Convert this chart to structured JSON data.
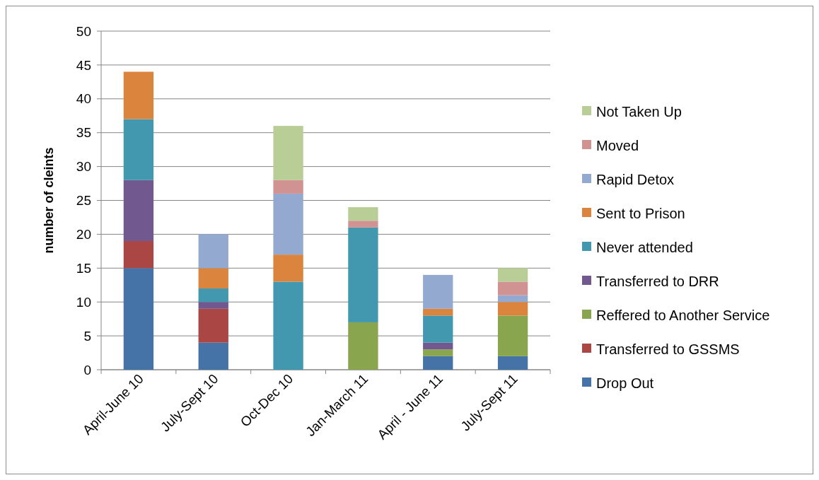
{
  "chart_data": {
    "type": "bar",
    "stacked": true,
    "ylabel": "number of cleints",
    "categories": [
      "April-June 10",
      "July-Sept 10",
      "Oct-Dec 10",
      "Jan-March 11",
      "April - June 11",
      "July-Sept 11"
    ],
    "ylim": [
      0,
      50
    ],
    "yticks": [
      0,
      5,
      10,
      15,
      20,
      25,
      30,
      35,
      40,
      45,
      50
    ],
    "grid": "y",
    "legend": "right",
    "series": [
      {
        "name": "Drop Out",
        "color": "#4572a7",
        "values": [
          15,
          4,
          0,
          0,
          2,
          2
        ]
      },
      {
        "name": "Transferred to GSSMS",
        "color": "#aa4643",
        "values": [
          4,
          5,
          0,
          0,
          0,
          0
        ]
      },
      {
        "name": "Reffered to Another Service",
        "color": "#89a54e",
        "values": [
          0,
          0,
          0,
          7,
          1,
          6
        ]
      },
      {
        "name": "Transferred to DRR",
        "color": "#71588f",
        "values": [
          9,
          1,
          0,
          0,
          1,
          0
        ]
      },
      {
        "name": "Never attended",
        "color": "#4198af",
        "values": [
          9,
          2,
          13,
          14,
          4,
          0
        ]
      },
      {
        "name": "Sent to Prison",
        "color": "#db843d",
        "values": [
          7,
          3,
          4,
          0,
          1,
          2
        ]
      },
      {
        "name": "Rapid Detox",
        "color": "#93a9cf",
        "values": [
          0,
          5,
          9,
          0,
          5,
          1
        ]
      },
      {
        "name": "Moved",
        "color": "#d19392",
        "values": [
          0,
          0,
          2,
          1,
          0,
          2
        ]
      },
      {
        "name": "Not Taken Up",
        "color": "#b9cd96",
        "values": [
          0,
          0,
          8,
          2,
          0,
          2
        ]
      }
    ]
  }
}
